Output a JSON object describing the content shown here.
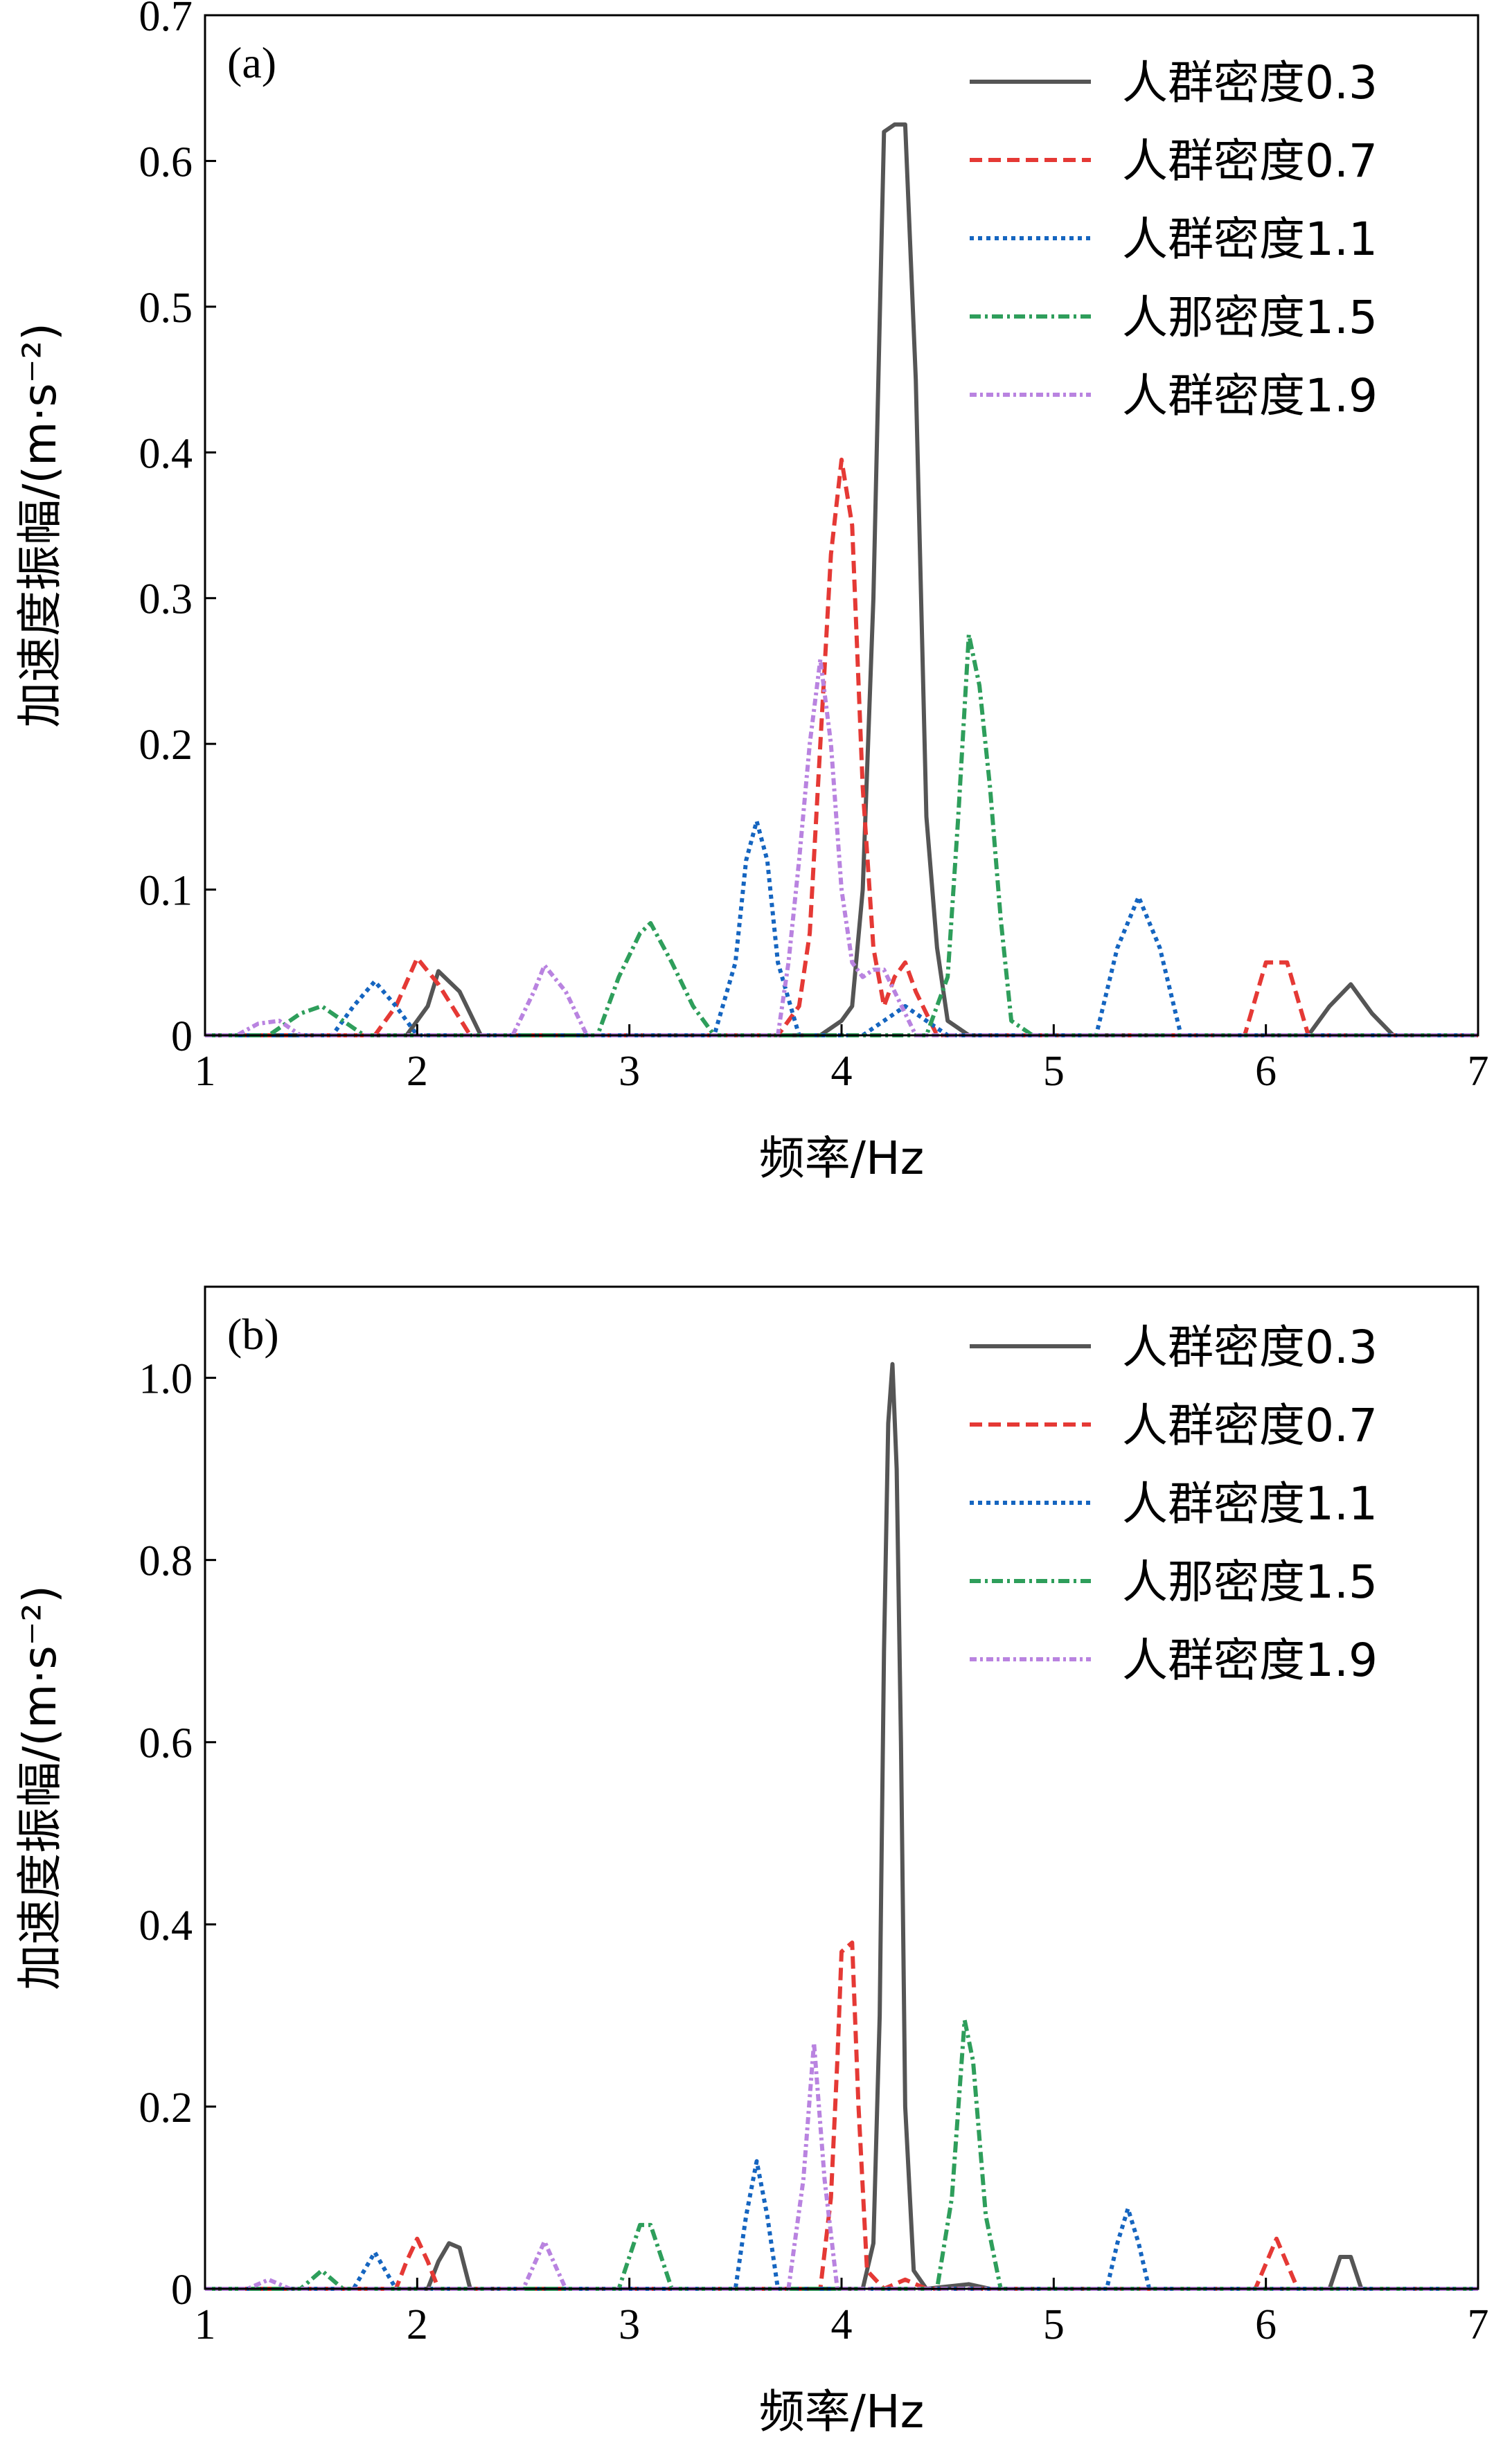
{
  "chart_data": [
    {
      "type": "line",
      "panel_label": "(a)",
      "xlabel": "频率/Hz",
      "ylabel": "加速度振幅/(m·s⁻²)",
      "xlim": [
        1,
        7
      ],
      "ylim": [
        0,
        0.7
      ],
      "xticks": [
        1,
        2,
        3,
        4,
        5,
        6,
        7
      ],
      "xtick_labels": [
        "1",
        "2",
        "3",
        "4",
        "5",
        "6",
        "7"
      ],
      "yticks": [
        0,
        0.1,
        0.2,
        0.3,
        0.4,
        0.5,
        0.6,
        0.7
      ],
      "ytick_labels": [
        "0",
        "0.1",
        "0.2",
        "0.3",
        "0.4",
        "0.5",
        "0.6",
        "0.7"
      ],
      "grid": false,
      "legend_position": "top-right",
      "series": [
        {
          "name": "人群密度0.3",
          "color": "#555555",
          "dash": "solid",
          "points": [
            [
              1.0,
              0
            ],
            [
              1.95,
              0
            ],
            [
              2.05,
              0.02
            ],
            [
              2.1,
              0.044
            ],
            [
              2.2,
              0.03
            ],
            [
              2.3,
              0
            ],
            [
              3.9,
              0
            ],
            [
              4.0,
              0.01
            ],
            [
              4.05,
              0.02
            ],
            [
              4.1,
              0.1
            ],
            [
              4.15,
              0.3
            ],
            [
              4.2,
              0.62
            ],
            [
              4.25,
              0.625
            ],
            [
              4.3,
              0.625
            ],
            [
              4.35,
              0.45
            ],
            [
              4.4,
              0.15
            ],
            [
              4.45,
              0.06
            ],
            [
              4.5,
              0.01
            ],
            [
              4.6,
              0
            ],
            [
              6.2,
              0
            ],
            [
              6.3,
              0.02
            ],
            [
              6.4,
              0.035
            ],
            [
              6.5,
              0.015
            ],
            [
              6.6,
              0
            ],
            [
              7.0,
              0
            ]
          ]
        },
        {
          "name": "人群密度0.7",
          "color": "#e53935",
          "dash": "18 9",
          "points": [
            [
              1.0,
              0
            ],
            [
              1.8,
              0
            ],
            [
              1.9,
              0.02
            ],
            [
              2.0,
              0.053
            ],
            [
              2.1,
              0.035
            ],
            [
              2.25,
              0
            ],
            [
              3.7,
              0
            ],
            [
              3.8,
              0.02
            ],
            [
              3.85,
              0.07
            ],
            [
              3.9,
              0.2
            ],
            [
              3.95,
              0.33
            ],
            [
              4.0,
              0.395
            ],
            [
              4.05,
              0.35
            ],
            [
              4.1,
              0.17
            ],
            [
              4.15,
              0.06
            ],
            [
              4.2,
              0.02
            ],
            [
              4.25,
              0.04
            ],
            [
              4.3,
              0.05
            ],
            [
              4.35,
              0.03
            ],
            [
              4.45,
              0
            ],
            [
              5.9,
              0
            ],
            [
              6.0,
              0.05
            ],
            [
              6.1,
              0.05
            ],
            [
              6.2,
              0
            ],
            [
              7.0,
              0
            ]
          ]
        },
        {
          "name": "人群密度1.1",
          "color": "#1565c0",
          "dash": "6 6",
          "points": [
            [
              1.0,
              0
            ],
            [
              1.6,
              0
            ],
            [
              1.7,
              0.02
            ],
            [
              1.8,
              0.037
            ],
            [
              1.9,
              0.02
            ],
            [
              2.0,
              0
            ],
            [
              3.4,
              0
            ],
            [
              3.5,
              0.05
            ],
            [
              3.55,
              0.12
            ],
            [
              3.6,
              0.147
            ],
            [
              3.65,
              0.12
            ],
            [
              3.7,
              0.05
            ],
            [
              3.8,
              0
            ],
            [
              4.1,
              0
            ],
            [
              4.2,
              0.01
            ],
            [
              4.3,
              0.02
            ],
            [
              4.4,
              0.01
            ],
            [
              4.5,
              0
            ],
            [
              5.2,
              0
            ],
            [
              5.3,
              0.06
            ],
            [
              5.4,
              0.095
            ],
            [
              5.5,
              0.06
            ],
            [
              5.6,
              0
            ],
            [
              7.0,
              0
            ]
          ]
        },
        {
          "name": "人那密度1.5",
          "color": "#2e9e5b",
          "dash": "16 6 4 6",
          "points": [
            [
              1.0,
              0
            ],
            [
              1.3,
              0
            ],
            [
              1.45,
              0.015
            ],
            [
              1.55,
              0.02
            ],
            [
              1.65,
              0.01
            ],
            [
              1.75,
              0
            ],
            [
              2.85,
              0
            ],
            [
              2.95,
              0.04
            ],
            [
              3.05,
              0.07
            ],
            [
              3.1,
              0.077
            ],
            [
              3.2,
              0.05
            ],
            [
              3.3,
              0.02
            ],
            [
              3.4,
              0
            ],
            [
              4.4,
              0
            ],
            [
              4.5,
              0.04
            ],
            [
              4.55,
              0.15
            ],
            [
              4.6,
              0.275
            ],
            [
              4.65,
              0.24
            ],
            [
              4.7,
              0.17
            ],
            [
              4.75,
              0.08
            ],
            [
              4.8,
              0.01
            ],
            [
              4.9,
              0
            ],
            [
              7.0,
              0
            ]
          ]
        },
        {
          "name": "人群密度1.9",
          "color": "#b983e0",
          "dash": "10 5 4 5",
          "points": [
            [
              1.0,
              0
            ],
            [
              1.15,
              0
            ],
            [
              1.25,
              0.008
            ],
            [
              1.35,
              0.01
            ],
            [
              1.45,
              0
            ],
            [
              2.45,
              0
            ],
            [
              2.55,
              0.03
            ],
            [
              2.6,
              0.048
            ],
            [
              2.7,
              0.03
            ],
            [
              2.8,
              0
            ],
            [
              3.7,
              0
            ],
            [
              3.75,
              0.05
            ],
            [
              3.8,
              0.12
            ],
            [
              3.85,
              0.2
            ],
            [
              3.9,
              0.258
            ],
            [
              3.95,
              0.2
            ],
            [
              4.0,
              0.1
            ],
            [
              4.05,
              0.05
            ],
            [
              4.1,
              0.04
            ],
            [
              4.15,
              0.045
            ],
            [
              4.2,
              0.045
            ],
            [
              4.25,
              0.03
            ],
            [
              4.35,
              0
            ],
            [
              7.0,
              0
            ]
          ]
        }
      ]
    },
    {
      "type": "line",
      "panel_label": "(b)",
      "xlabel": "频率/Hz",
      "ylabel": "加速度振幅/(m·s⁻²)",
      "xlim": [
        1,
        7
      ],
      "ylim": [
        0,
        1.1
      ],
      "xticks": [
        1,
        2,
        3,
        4,
        5,
        6,
        7
      ],
      "xtick_labels": [
        "1",
        "2",
        "3",
        "4",
        "5",
        "6",
        "7"
      ],
      "yticks": [
        0,
        0.2,
        0.4,
        0.6,
        0.8,
        1.0
      ],
      "ytick_labels": [
        "0",
        "0.2",
        "0.4",
        "0.6",
        "0.8",
        "1.0"
      ],
      "grid": false,
      "legend_position": "top-right",
      "series": [
        {
          "name": "人群密度0.3",
          "color": "#555555",
          "dash": "solid",
          "points": [
            [
              1.0,
              0
            ],
            [
              2.05,
              0
            ],
            [
              2.1,
              0.03
            ],
            [
              2.15,
              0.05
            ],
            [
              2.2,
              0.045
            ],
            [
              2.25,
              0
            ],
            [
              4.1,
              0
            ],
            [
              4.15,
              0.05
            ],
            [
              4.18,
              0.3
            ],
            [
              4.2,
              0.7
            ],
            [
              4.22,
              0.95
            ],
            [
              4.24,
              1.015
            ],
            [
              4.26,
              0.9
            ],
            [
              4.28,
              0.6
            ],
            [
              4.3,
              0.2
            ],
            [
              4.34,
              0.02
            ],
            [
              4.4,
              0
            ],
            [
              4.6,
              0.005
            ],
            [
              4.7,
              0
            ],
            [
              6.3,
              0
            ],
            [
              6.35,
              0.035
            ],
            [
              6.4,
              0.035
            ],
            [
              6.45,
              0
            ],
            [
              7.0,
              0
            ]
          ]
        },
        {
          "name": "人群密度0.7",
          "color": "#e53935",
          "dash": "18 9",
          "points": [
            [
              1.0,
              0
            ],
            [
              1.9,
              0
            ],
            [
              1.95,
              0.03
            ],
            [
              2.0,
              0.055
            ],
            [
              2.05,
              0.03
            ],
            [
              2.1,
              0
            ],
            [
              3.9,
              0
            ],
            [
              3.95,
              0.1
            ],
            [
              3.98,
              0.25
            ],
            [
              4.0,
              0.37
            ],
            [
              4.05,
              0.38
            ],
            [
              4.08,
              0.2
            ],
            [
              4.12,
              0.02
            ],
            [
              4.2,
              0
            ],
            [
              4.3,
              0.01
            ],
            [
              4.4,
              0
            ],
            [
              5.95,
              0
            ],
            [
              6.05,
              0.055
            ],
            [
              6.15,
              0
            ],
            [
              7.0,
              0
            ]
          ]
        },
        {
          "name": "人群密度1.1",
          "color": "#1565c0",
          "dash": "6 6",
          "points": [
            [
              1.0,
              0
            ],
            [
              1.7,
              0
            ],
            [
              1.75,
              0.02
            ],
            [
              1.8,
              0.04
            ],
            [
              1.85,
              0.02
            ],
            [
              1.9,
              0
            ],
            [
              3.5,
              0
            ],
            [
              3.55,
              0.08
            ],
            [
              3.6,
              0.14
            ],
            [
              3.65,
              0.08
            ],
            [
              3.7,
              0
            ],
            [
              5.25,
              0
            ],
            [
              5.3,
              0.05
            ],
            [
              5.35,
              0.088
            ],
            [
              5.4,
              0.05
            ],
            [
              5.45,
              0
            ],
            [
              7.0,
              0
            ]
          ]
        },
        {
          "name": "人那密度1.5",
          "color": "#2e9e5b",
          "dash": "16 6 4 6",
          "points": [
            [
              1.0,
              0
            ],
            [
              1.45,
              0
            ],
            [
              1.55,
              0.02
            ],
            [
              1.65,
              0
            ],
            [
              2.95,
              0
            ],
            [
              3.05,
              0.07
            ],
            [
              3.1,
              0.07
            ],
            [
              3.2,
              0
            ],
            [
              4.45,
              0
            ],
            [
              4.52,
              0.1
            ],
            [
              4.58,
              0.295
            ],
            [
              4.62,
              0.25
            ],
            [
              4.68,
              0.08
            ],
            [
              4.75,
              0
            ],
            [
              7.0,
              0
            ]
          ]
        },
        {
          "name": "人群密度1.9",
          "color": "#b983e0",
          "dash": "10 5 4 5",
          "points": [
            [
              1.0,
              0
            ],
            [
              1.2,
              0
            ],
            [
              1.3,
              0.01
            ],
            [
              1.4,
              0
            ],
            [
              2.5,
              0
            ],
            [
              2.6,
              0.052
            ],
            [
              2.7,
              0
            ],
            [
              3.75,
              0
            ],
            [
              3.82,
              0.12
            ],
            [
              3.87,
              0.27
            ],
            [
              3.92,
              0.12
            ],
            [
              3.98,
              0
            ],
            [
              7.0,
              0
            ]
          ]
        }
      ]
    }
  ]
}
